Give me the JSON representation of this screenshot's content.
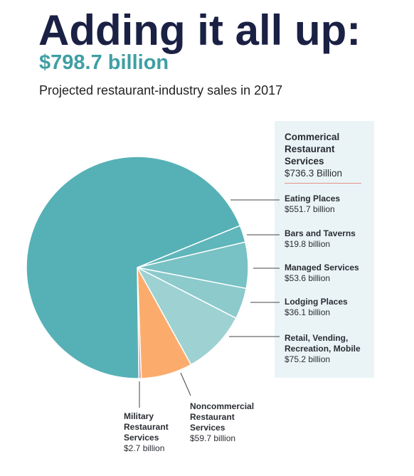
{
  "header": {
    "title": "Adding it all up:",
    "total": "$798.7 billion",
    "subtitle": "Projected restaurant-industry sales in 2017"
  },
  "colors": {
    "title": "#1b2144",
    "total": "#3f9fa3",
    "panel": "#eaf4f6",
    "divider": "#e58f8f"
  },
  "chart_data": {
    "type": "pie",
    "groups": [
      {
        "name": "Commerical Restaurant Services",
        "value_label": "$736.3 Billion"
      }
    ],
    "slices": [
      {
        "name": "Eating Places",
        "value": 551.7,
        "value_label": "$551.7 billion",
        "color": "#56b1b6",
        "group": "Commerical Restaurant Services"
      },
      {
        "name": "Bars and Taverns",
        "value": 19.8,
        "value_label": "$19.8 billion",
        "color": "#5fb6bb",
        "group": "Commerical Restaurant Services"
      },
      {
        "name": "Managed Services",
        "value": 53.6,
        "value_label": "$53.6 billion",
        "color": "#78c1c4",
        "group": "Commerical Restaurant Services"
      },
      {
        "name": "Lodging Places",
        "value": 36.1,
        "value_label": "$36.1 billion",
        "color": "#8ccacc",
        "group": "Commerical Restaurant Services"
      },
      {
        "name": "Retail, Vending, Recreation, Mobile",
        "value": 75.2,
        "value_label": "$75.2 billion",
        "color": "#9dd1d2",
        "group": "Commerical Restaurant Services"
      },
      {
        "name": "Noncommercial Restaurant Services",
        "value": 59.7,
        "value_label": "$59.7 billion",
        "color": "#fbac6d"
      },
      {
        "name": "Military Restaurant Services",
        "value": 2.7,
        "value_label": "$2.7 billion",
        "color": "#e58888"
      }
    ]
  }
}
